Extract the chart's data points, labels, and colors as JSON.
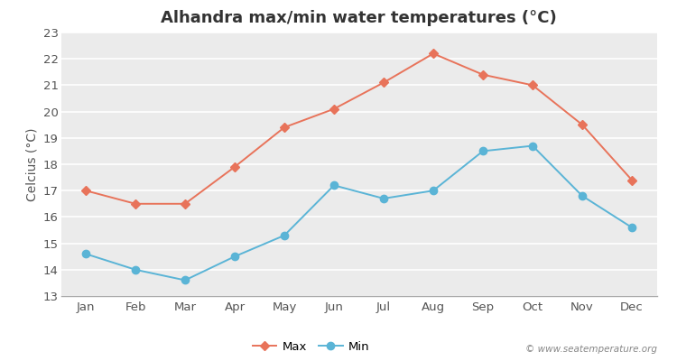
{
  "title": "Alhandra max/min water temperatures (°C)",
  "ylabel": "Celcius (°C)",
  "months": [
    "Jan",
    "Feb",
    "Mar",
    "Apr",
    "May",
    "Jun",
    "Jul",
    "Aug",
    "Sep",
    "Oct",
    "Nov",
    "Dec"
  ],
  "max_temps": [
    17.0,
    16.5,
    16.5,
    17.9,
    19.4,
    20.1,
    21.1,
    22.2,
    21.4,
    21.0,
    19.5,
    17.4
  ],
  "min_temps": [
    14.6,
    14.0,
    13.6,
    14.5,
    15.3,
    17.2,
    16.7,
    17.0,
    18.5,
    18.7,
    16.8,
    15.6
  ],
  "max_color": "#e8735a",
  "min_color": "#5ab4d6",
  "bg_color": "#ffffff",
  "plot_bg_color": "#ebebeb",
  "grid_color": "#ffffff",
  "spine_color": "#aaaaaa",
  "tick_color": "#555555",
  "title_color": "#333333",
  "ylim": [
    13,
    23
  ],
  "yticks": [
    13,
    14,
    15,
    16,
    17,
    18,
    19,
    20,
    21,
    22,
    23
  ],
  "title_fontsize": 13,
  "axis_label_fontsize": 10,
  "tick_fontsize": 9.5,
  "legend_fontsize": 9.5,
  "watermark": "© www.seatemperature.org"
}
